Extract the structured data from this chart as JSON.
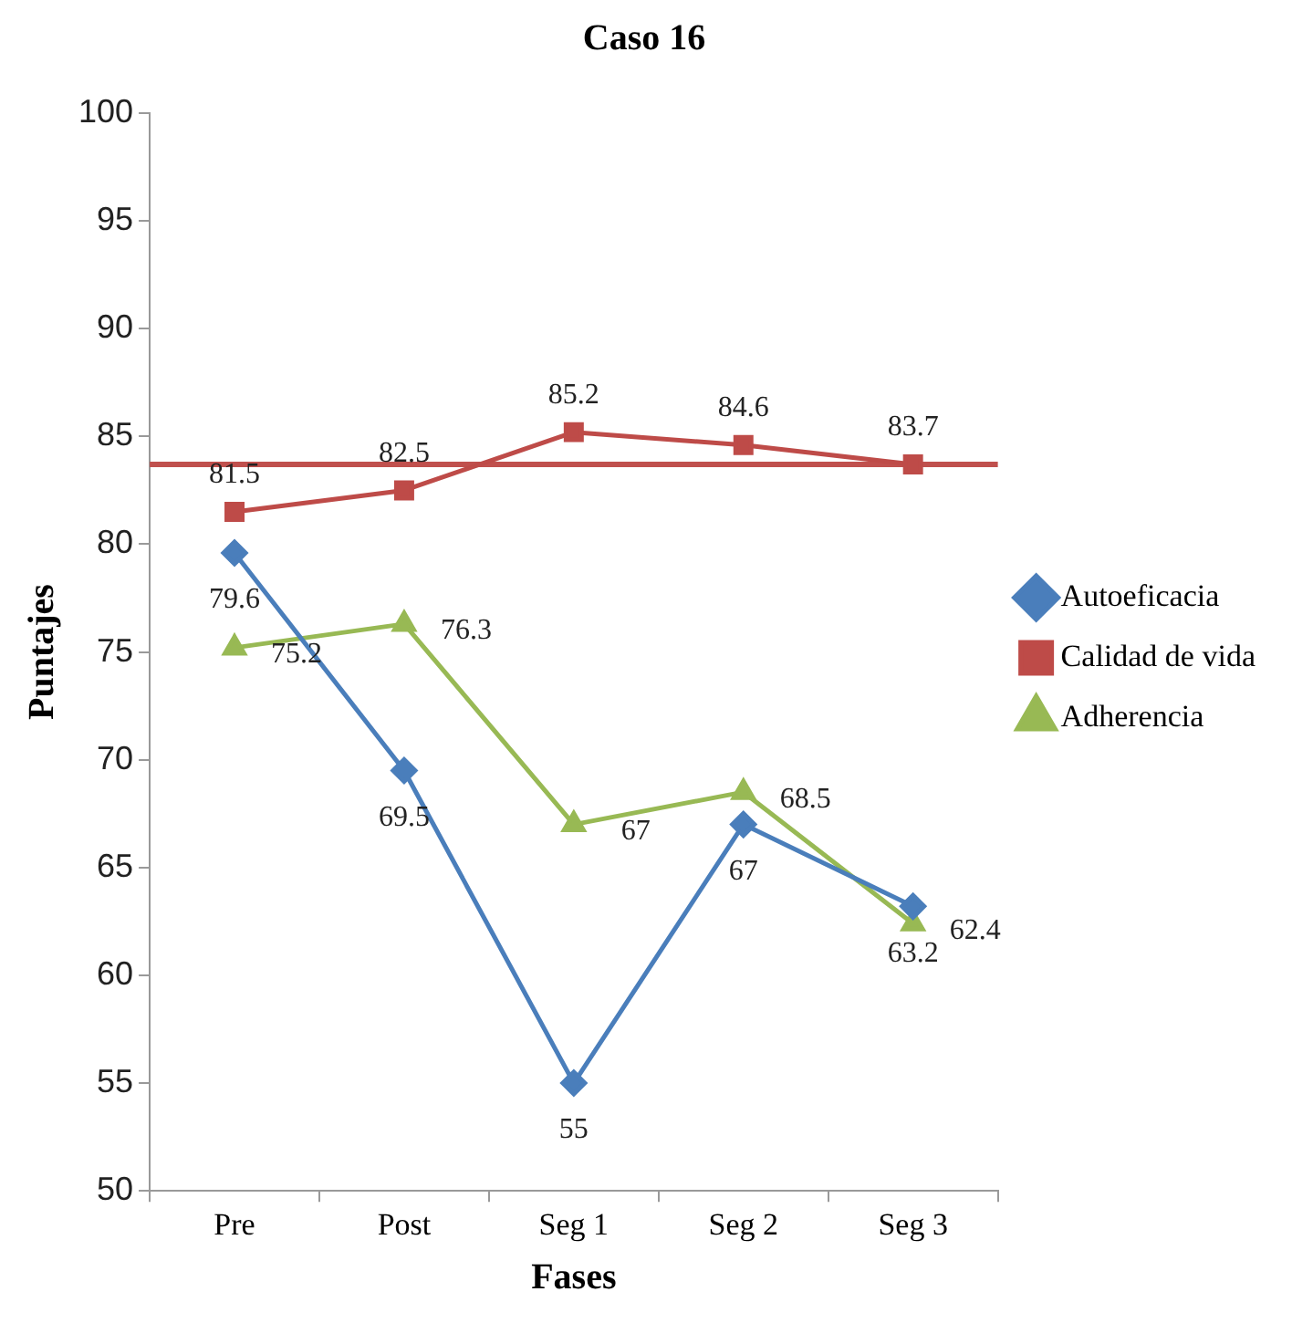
{
  "chart_data": {
    "type": "line",
    "title": "Caso 16",
    "xlabel": "Fases",
    "ylabel": "Puntajes",
    "categories": [
      "Pre",
      "Post",
      "Seg 1",
      "Seg 2",
      "Seg 3"
    ],
    "series": [
      {
        "name": "Autoeficacia",
        "color": "#4a7ebb",
        "marker": "diamond",
        "values": [
          79.6,
          69.5,
          55,
          67,
          63.2
        ]
      },
      {
        "name": "Calidad de vida",
        "color": "#be4b48",
        "marker": "square",
        "values": [
          81.5,
          82.5,
          85.2,
          84.6,
          83.7
        ]
      },
      {
        "name": "Adherencia",
        "color": "#98b954",
        "marker": "triangle",
        "values": [
          75.2,
          76.3,
          67,
          68.5,
          62.4
        ]
      }
    ],
    "ylim": [
      50,
      100
    ],
    "yticks": [
      50,
      55,
      60,
      65,
      70,
      75,
      80,
      85,
      90,
      95,
      100
    ],
    "ref_lines": [
      {
        "axis": "y",
        "value": 83.7,
        "color": "#c0504d"
      }
    ],
    "data_labels": true,
    "grid": false,
    "legend": "right"
  }
}
